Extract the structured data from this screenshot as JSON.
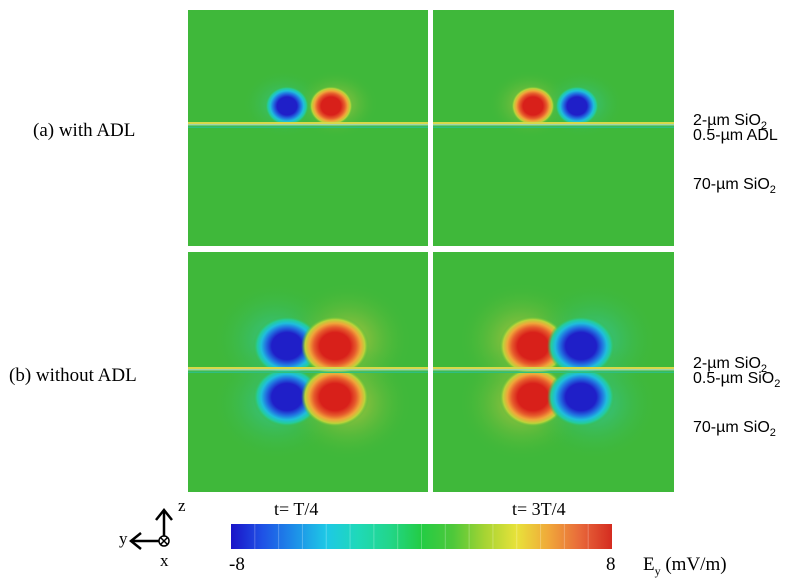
{
  "rows": [
    {
      "label": "(a) with ADL",
      "layers": [
        {
          "text": "2-µm SiO",
          "sub": "2"
        },
        {
          "text": "0.5-µm ADL",
          "sub": ""
        },
        {
          "text": "70-µm SiO",
          "sub": "2"
        }
      ]
    },
    {
      "label": "(b) without ADL",
      "layers": [
        {
          "text": "2-µm SiO",
          "sub": "2"
        },
        {
          "text": "0.5-µm SiO",
          "sub": "2"
        },
        {
          "text": "70-µm SiO",
          "sub": "2"
        }
      ]
    }
  ],
  "columns": [
    {
      "time_label": "t= T/4"
    },
    {
      "time_label": "t= 3T/4"
    }
  ],
  "colorbar": {
    "min_label": "-8",
    "max_label": "8",
    "quantity": "E",
    "quantity_sub": "y",
    "unit": " (mV/m)",
    "colors": [
      "#1a14c8",
      "#1f52e6",
      "#1d8ee8",
      "#1ec8e6",
      "#1fd9b8",
      "#22d68a",
      "#23cc44",
      "#4fc83a",
      "#a6d433",
      "#e8e23a",
      "#f0a83a",
      "#e8683a",
      "#d42b20"
    ]
  },
  "axes": {
    "z": "z",
    "y": "y",
    "x": "x"
  },
  "field_colors": {
    "background": "#3fb83a",
    "positive": "#d8201a",
    "negative": "#1f1fc8",
    "waveguide": "#d7d84a"
  }
}
